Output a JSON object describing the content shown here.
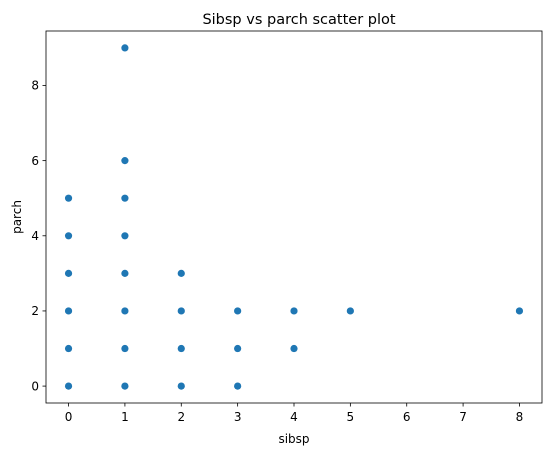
{
  "chart_data": {
    "type": "scatter",
    "title": "Sibsp vs parch scatter plot",
    "xlabel": "sibsp",
    "ylabel": "parch",
    "xlim": [
      -0.4,
      8.4
    ],
    "ylim": [
      -0.45,
      9.45
    ],
    "xticks": [
      0,
      1,
      2,
      3,
      4,
      5,
      6,
      7,
      8
    ],
    "yticks": [
      0,
      2,
      4,
      6,
      8
    ],
    "grid": false,
    "point_color": "#1f77b4",
    "points": [
      {
        "x": 0,
        "y": 0
      },
      {
        "x": 0,
        "y": 1
      },
      {
        "x": 0,
        "y": 2
      },
      {
        "x": 0,
        "y": 3
      },
      {
        "x": 0,
        "y": 4
      },
      {
        "x": 0,
        "y": 5
      },
      {
        "x": 1,
        "y": 0
      },
      {
        "x": 1,
        "y": 1
      },
      {
        "x": 1,
        "y": 2
      },
      {
        "x": 1,
        "y": 3
      },
      {
        "x": 1,
        "y": 4
      },
      {
        "x": 1,
        "y": 5
      },
      {
        "x": 1,
        "y": 6
      },
      {
        "x": 1,
        "y": 9
      },
      {
        "x": 2,
        "y": 0
      },
      {
        "x": 2,
        "y": 1
      },
      {
        "x": 2,
        "y": 2
      },
      {
        "x": 2,
        "y": 3
      },
      {
        "x": 3,
        "y": 0
      },
      {
        "x": 3,
        "y": 1
      },
      {
        "x": 3,
        "y": 2
      },
      {
        "x": 4,
        "y": 1
      },
      {
        "x": 4,
        "y": 2
      },
      {
        "x": 5,
        "y": 2
      },
      {
        "x": 8,
        "y": 2
      }
    ]
  }
}
